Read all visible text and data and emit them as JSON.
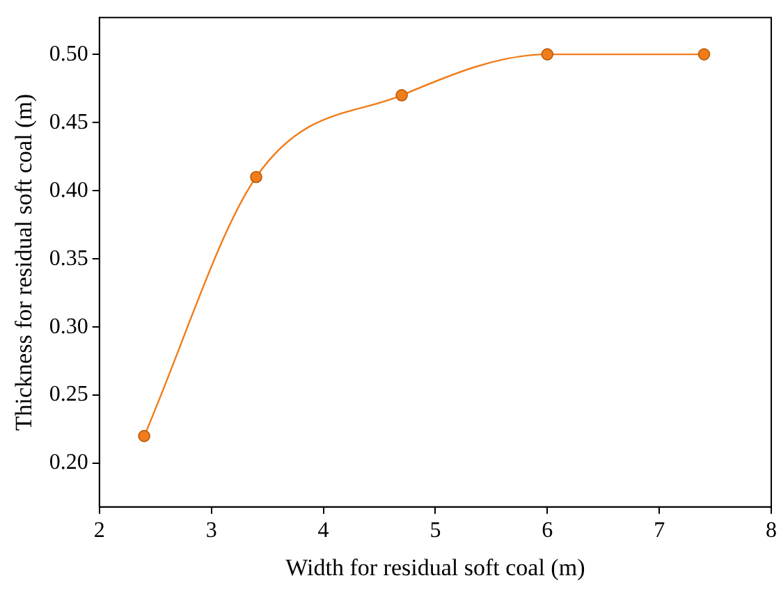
{
  "chart_data": {
    "type": "line",
    "xlabel": "Width for residual soft coal (m)",
    "ylabel": "Thickness for residual soft coal (m)",
    "x": [
      2.4,
      3.4,
      4.7,
      6,
      7.4
    ],
    "series": [
      {
        "color": "#f07d1a",
        "values": [
          0.22,
          0.41,
          0.47,
          0.5,
          0.5
        ]
      }
    ],
    "xlim": [
      2,
      8
    ],
    "xticks": [
      2,
      3,
      4,
      5,
      6,
      7,
      8
    ],
    "ylim": [
      0.168,
      0.527
    ],
    "yticks": [
      {
        "value": 0.2,
        "label": "0.20"
      },
      {
        "value": 0.25,
        "label": "0.25"
      },
      {
        "value": 0.3,
        "label": "0.30"
      },
      {
        "value": 0.35,
        "label": "0.35"
      },
      {
        "value": 0.4,
        "label": "0.40"
      },
      {
        "value": 0.45,
        "label": "0.45"
      },
      {
        "value": 0.5,
        "label": "0.50"
      }
    ],
    "grid": false,
    "legend": false,
    "marker": "circle",
    "line_style": "solid"
  }
}
